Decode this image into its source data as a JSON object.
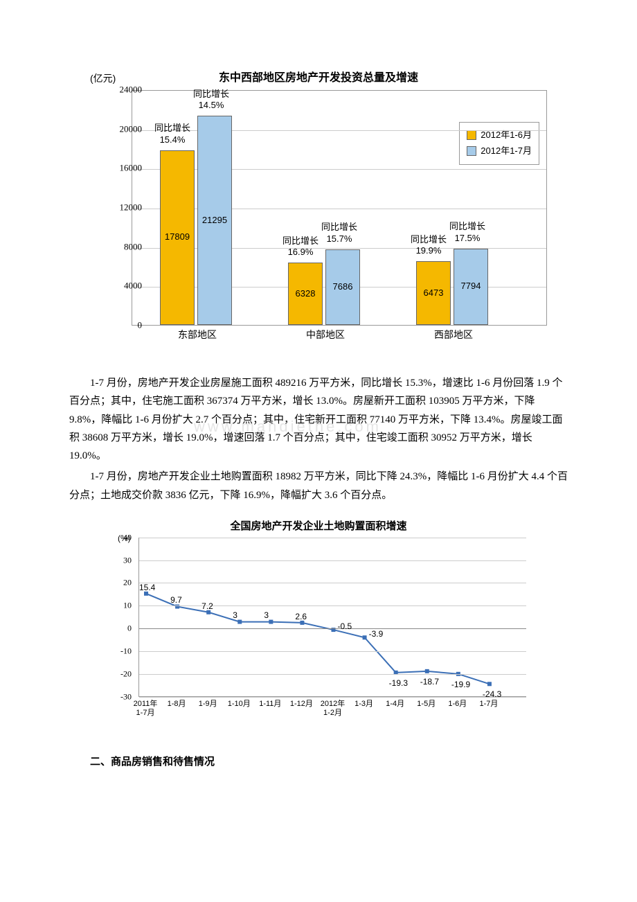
{
  "bar_chart": {
    "title": "东中西部地区房地产开发投资总量及增速",
    "y_unit": "(亿元)",
    "y_max": 24000,
    "y_step": 4000,
    "categories": [
      "东部地区",
      "中部地区",
      "西部地区"
    ],
    "series": [
      {
        "name": "2012年1-6月",
        "color": "#f5b800",
        "values": [
          17809,
          6328,
          6473
        ]
      },
      {
        "name": "2012年1-7月",
        "color": "#a6cbe9",
        "values": [
          21295,
          7686,
          7794
        ]
      }
    ],
    "growth_labels": [
      {
        "left": "同比增长\n15.4%",
        "right": "同比增长\n14.5%"
      },
      {
        "left": "同比增长\n16.9%",
        "right": "同比增长\n15.7%"
      },
      {
        "left": "同比增长\n19.9%",
        "right": "同比增长\n17.5%"
      }
    ]
  },
  "paragraphs": [
    "1-7 月份，房地产开发企业房屋施工面积 489216 万平方米，同比增长 15.3%，增速比 1-6 月份回落 1.9 个百分点；其中，住宅施工面积 367374 万平方米，增长 13.0%。房屋新开工面积 103905 万平方米，下降 9.8%，降幅比 1-6 月份扩大 2.7 个百分点；其中，住宅新开工面积 77140 万平方米，下降 13.4%。房屋竣工面积 38608 万平方米，增长 19.0%，增速回落 1.7 个百分点；其中，住宅竣工面积 30952 万平方米，增长 19.0%。",
    "1-7 月份，房地产开发企业土地购置面积 18982 万平方米，同比下降 24.3%，降幅比 1-6 月份扩大 4.4 个百分点；土地成交价款 3836 亿元，下降 16.9%，降幅扩大 3.6 个百分点。"
  ],
  "watermark": "www.mandiethe.com",
  "line_chart": {
    "title": "全国房地产开发企业土地购置面积增速",
    "y_unit": "(%)",
    "y_min": -30,
    "y_max": 40,
    "y_step": 10,
    "color": "#3b6fb6",
    "marker_color": "#3b6fb6",
    "points": [
      {
        "x": "2011年\n1-7月",
        "y": 15.4
      },
      {
        "x": "1-8月",
        "y": 9.7
      },
      {
        "x": "1-9月",
        "y": 7.2
      },
      {
        "x": "1-10月",
        "y": 3.0
      },
      {
        "x": "1-11月",
        "y": 3.0
      },
      {
        "x": "1-12月",
        "y": 2.6
      },
      {
        "x": "2012年\n1-2月",
        "y": -0.5
      },
      {
        "x": "1-3月",
        "y": -3.9
      },
      {
        "x": "1-4月",
        "y": -19.3
      },
      {
        "x": "1-5月",
        "y": -18.7
      },
      {
        "x": "1-6月",
        "y": -19.9
      },
      {
        "x": "1-7月",
        "y": -24.3
      }
    ]
  },
  "heading": "二、商品房销售和待售情况"
}
